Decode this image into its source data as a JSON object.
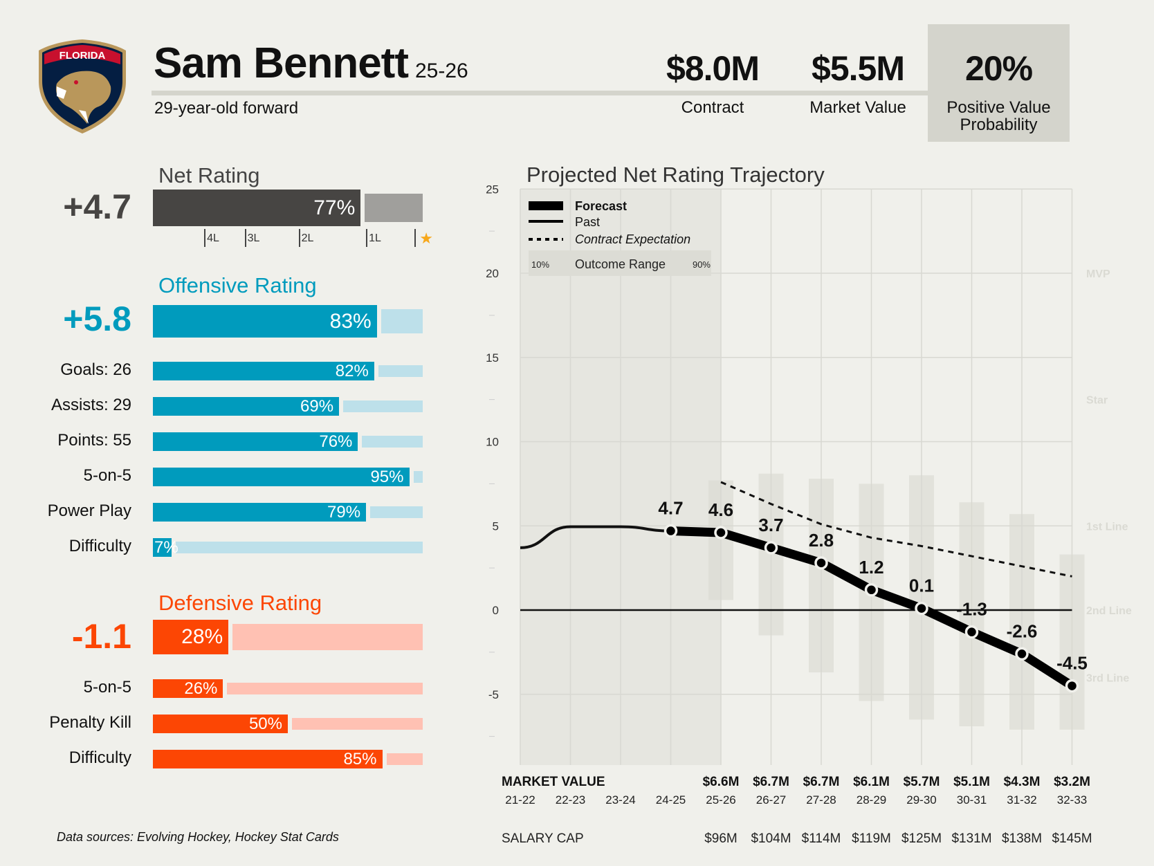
{
  "header": {
    "team": "FLORIDA",
    "player_name": "Sam Bennett",
    "season": "25-26",
    "subtitle": "29-year-old forward",
    "stats": [
      {
        "value": "$8.0M",
        "label": "Contract"
      },
      {
        "value": "$5.5M",
        "label": "Market Value"
      },
      {
        "value": "20%",
        "label": "Positive Value Probability",
        "label_line1": "Positive Value",
        "label_line2": "Probability"
      }
    ]
  },
  "colors": {
    "net": "#474543",
    "net_remainder": "#a09f9c",
    "offense": "#009bbd",
    "offense_remainder": "#bde0ea",
    "defense": "#fc4604",
    "defense_remainder": "#ffc1b3",
    "star": "#f7a81b",
    "background": "#f0f0eb"
  },
  "net_rating": {
    "title": "Net Rating",
    "value": "+4.7",
    "percentile": 77,
    "percentile_label": "77%",
    "tiers": [
      {
        "label": "4L",
        "percentile": 19
      },
      {
        "label": "3L",
        "percentile": 34
      },
      {
        "label": "2L",
        "percentile": 54
      },
      {
        "label": "1L",
        "percentile": 79
      },
      {
        "label": "star",
        "percentile": 97
      }
    ]
  },
  "offensive_rating": {
    "title": "Offensive Rating",
    "value": "+5.8",
    "percentile": 83,
    "percentile_label": "83%",
    "rows": [
      {
        "label": "Goals: 26",
        "percentile": 82,
        "percentile_label": "82%"
      },
      {
        "label": "Assists: 29",
        "percentile": 69,
        "percentile_label": "69%"
      },
      {
        "label": "Points: 55",
        "percentile": 76,
        "percentile_label": "76%"
      },
      {
        "label": "5-on-5",
        "percentile": 95,
        "percentile_label": "95%"
      },
      {
        "label": "Power Play",
        "percentile": 79,
        "percentile_label": "79%"
      },
      {
        "label": "Difficulty",
        "percentile": 7,
        "percentile_label": "7%"
      }
    ]
  },
  "defensive_rating": {
    "title": "Defensive Rating",
    "value": "-1.1",
    "percentile": 28,
    "percentile_label": "28%",
    "rows": [
      {
        "label": "5-on-5",
        "percentile": 26,
        "percentile_label": "26%"
      },
      {
        "label": "Penalty Kill",
        "percentile": 50,
        "percentile_label": "50%"
      },
      {
        "label": "Difficulty",
        "percentile": 85,
        "percentile_label": "85%"
      }
    ]
  },
  "footer": {
    "sources": "Data sources: Evolving Hockey, Hockey Stat Cards"
  },
  "chart_data": {
    "type": "line",
    "title": "Projected Net Rating Trajectory",
    "xlabel": "",
    "ylabel": "",
    "ylim": [
      -9,
      25
    ],
    "yticks": [
      25,
      20,
      15,
      10,
      5,
      0,
      -5
    ],
    "grid": true,
    "legend": {
      "placement": "top-left",
      "entries": [
        "Forecast",
        "Past",
        "Contract Expectation"
      ],
      "range_label": "Outcome Range",
      "range_low": "10%",
      "range_high": "90%"
    },
    "categories": [
      "21-22",
      "22-23",
      "23-24",
      "24-25",
      "25-26",
      "26-27",
      "27-28",
      "28-29",
      "29-30",
      "30-31",
      "31-32",
      "32-33"
    ],
    "past": {
      "name": "Past",
      "x": [
        "21-22",
        "22-23",
        "23-24",
        "24-25"
      ],
      "values": [
        3.7,
        4.95,
        4.95,
        4.7
      ]
    },
    "forecast": {
      "name": "Forecast",
      "x": [
        "24-25",
        "25-26",
        "26-27",
        "27-28",
        "28-29",
        "29-30",
        "30-31",
        "31-32",
        "32-33"
      ],
      "values": [
        4.7,
        4.6,
        3.7,
        2.8,
        1.2,
        0.1,
        -1.3,
        -2.6,
        -4.5
      ],
      "labels": [
        "4.7",
        "4.6",
        "3.7",
        "2.8",
        "1.2",
        "0.1",
        "-1.3",
        "-2.6",
        "-4.5"
      ]
    },
    "contract_expectation": {
      "name": "Contract Expectation",
      "x": [
        "25-26",
        "26-27",
        "27-28",
        "28-29",
        "29-30",
        "30-31",
        "31-32",
        "32-33"
      ],
      "values": [
        7.6,
        6.3,
        5.1,
        4.3,
        3.8,
        3.2,
        2.6,
        2.0
      ]
    },
    "outcome_range": {
      "name": "Outcome Range (10%-90%)",
      "x": [
        "25-26",
        "26-27",
        "27-28",
        "28-29",
        "29-30",
        "30-31",
        "31-32",
        "32-33"
      ],
      "low": [
        0.6,
        -1.5,
        -3.7,
        -5.4,
        -6.5,
        -6.9,
        -7.1,
        -7.1
      ],
      "high": [
        7.7,
        8.1,
        7.8,
        7.5,
        8.0,
        6.4,
        5.7,
        3.3
      ]
    },
    "tier_labels": [
      {
        "label": "MVP",
        "value": 20
      },
      {
        "label": "Star",
        "value": 12.5
      },
      {
        "label": "1st Line",
        "value": 5
      },
      {
        "label": "2nd Line",
        "value": 0
      },
      {
        "label": "3rd Line",
        "value": -4
      }
    ],
    "market_value": {
      "label": "MARKET VALUE",
      "x": [
        "25-26",
        "26-27",
        "27-28",
        "28-29",
        "29-30",
        "30-31",
        "31-32",
        "32-33"
      ],
      "values": [
        "$6.6M",
        "$6.7M",
        "$6.7M",
        "$6.1M",
        "$5.7M",
        "$5.1M",
        "$4.3M",
        "$3.2M"
      ]
    },
    "salary_cap": {
      "label": "SALARY CAP",
      "x": [
        "25-26",
        "26-27",
        "27-28",
        "28-29",
        "29-30",
        "30-31",
        "31-32",
        "32-33"
      ],
      "values": [
        "$96M",
        "$104M",
        "$114M",
        "$119M",
        "$125M",
        "$131M",
        "$138M",
        "$145M"
      ]
    }
  }
}
